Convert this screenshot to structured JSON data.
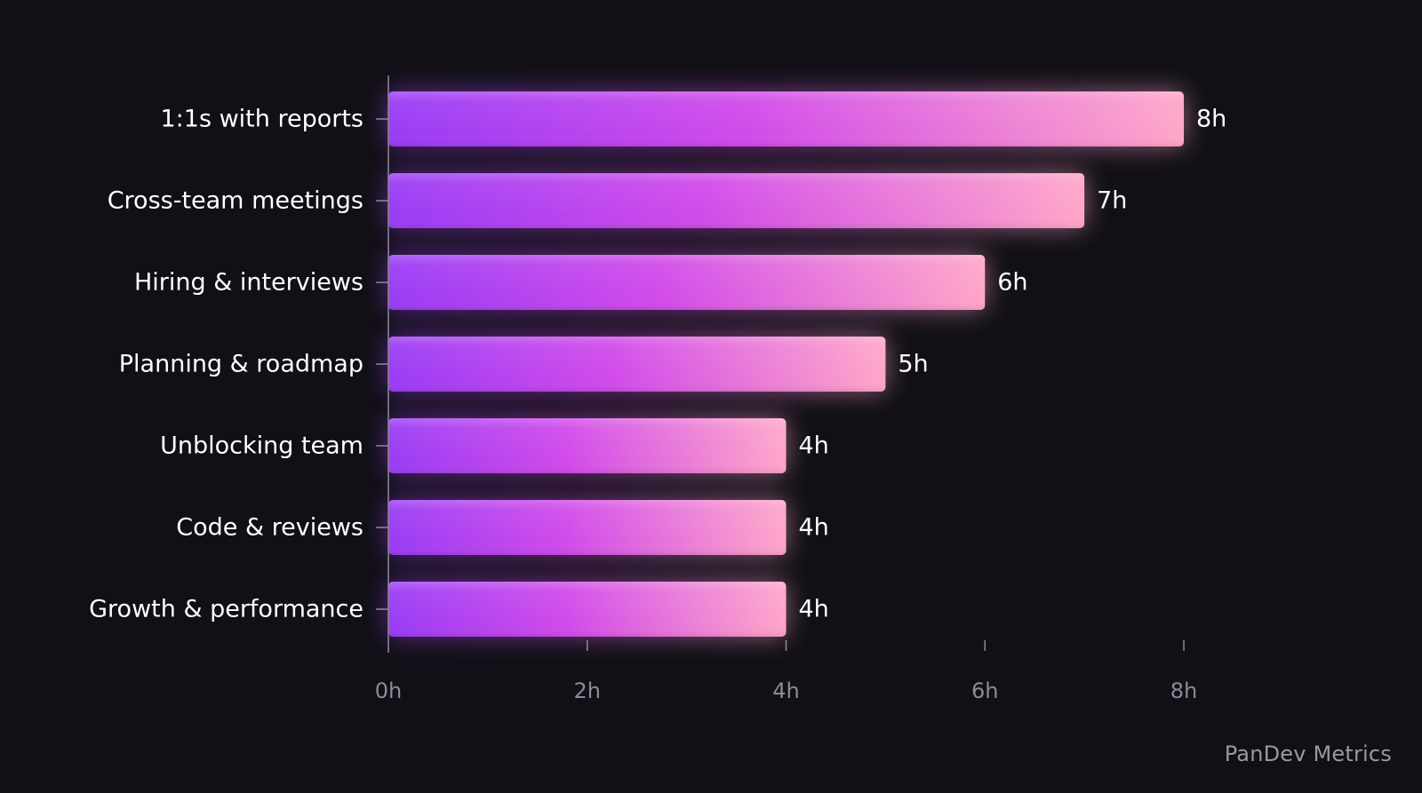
{
  "chart_data": {
    "type": "bar",
    "orientation": "horizontal",
    "categories": [
      "1:1s with reports",
      "Cross-team meetings",
      "Hiring & interviews",
      "Planning & roadmap",
      "Unblocking team",
      "Code & reviews",
      "Growth & performance"
    ],
    "values": [
      8,
      7,
      6,
      5,
      4,
      4,
      4
    ],
    "value_labels": [
      "8h",
      "7h",
      "6h",
      "5h",
      "4h",
      "4h",
      "4h"
    ],
    "xticks": [
      0,
      2,
      4,
      6,
      8
    ],
    "xtick_labels": [
      "0h",
      "2h",
      "4h",
      "6h",
      "8h"
    ],
    "xlim": [
      0,
      8
    ],
    "title": "",
    "xlabel": "",
    "ylabel": "",
    "grid": false,
    "legend": "none",
    "colors": {
      "background": "#111016",
      "bar_gradient_start": "#9a3cf5",
      "bar_gradient_mid": "#d14aea",
      "bar_gradient_end": "#ffa6c8",
      "axis": "#8e8a97",
      "text": "#ffffff",
      "tick_text": "#8e8a97"
    }
  },
  "watermark": "PanDev Metrics"
}
